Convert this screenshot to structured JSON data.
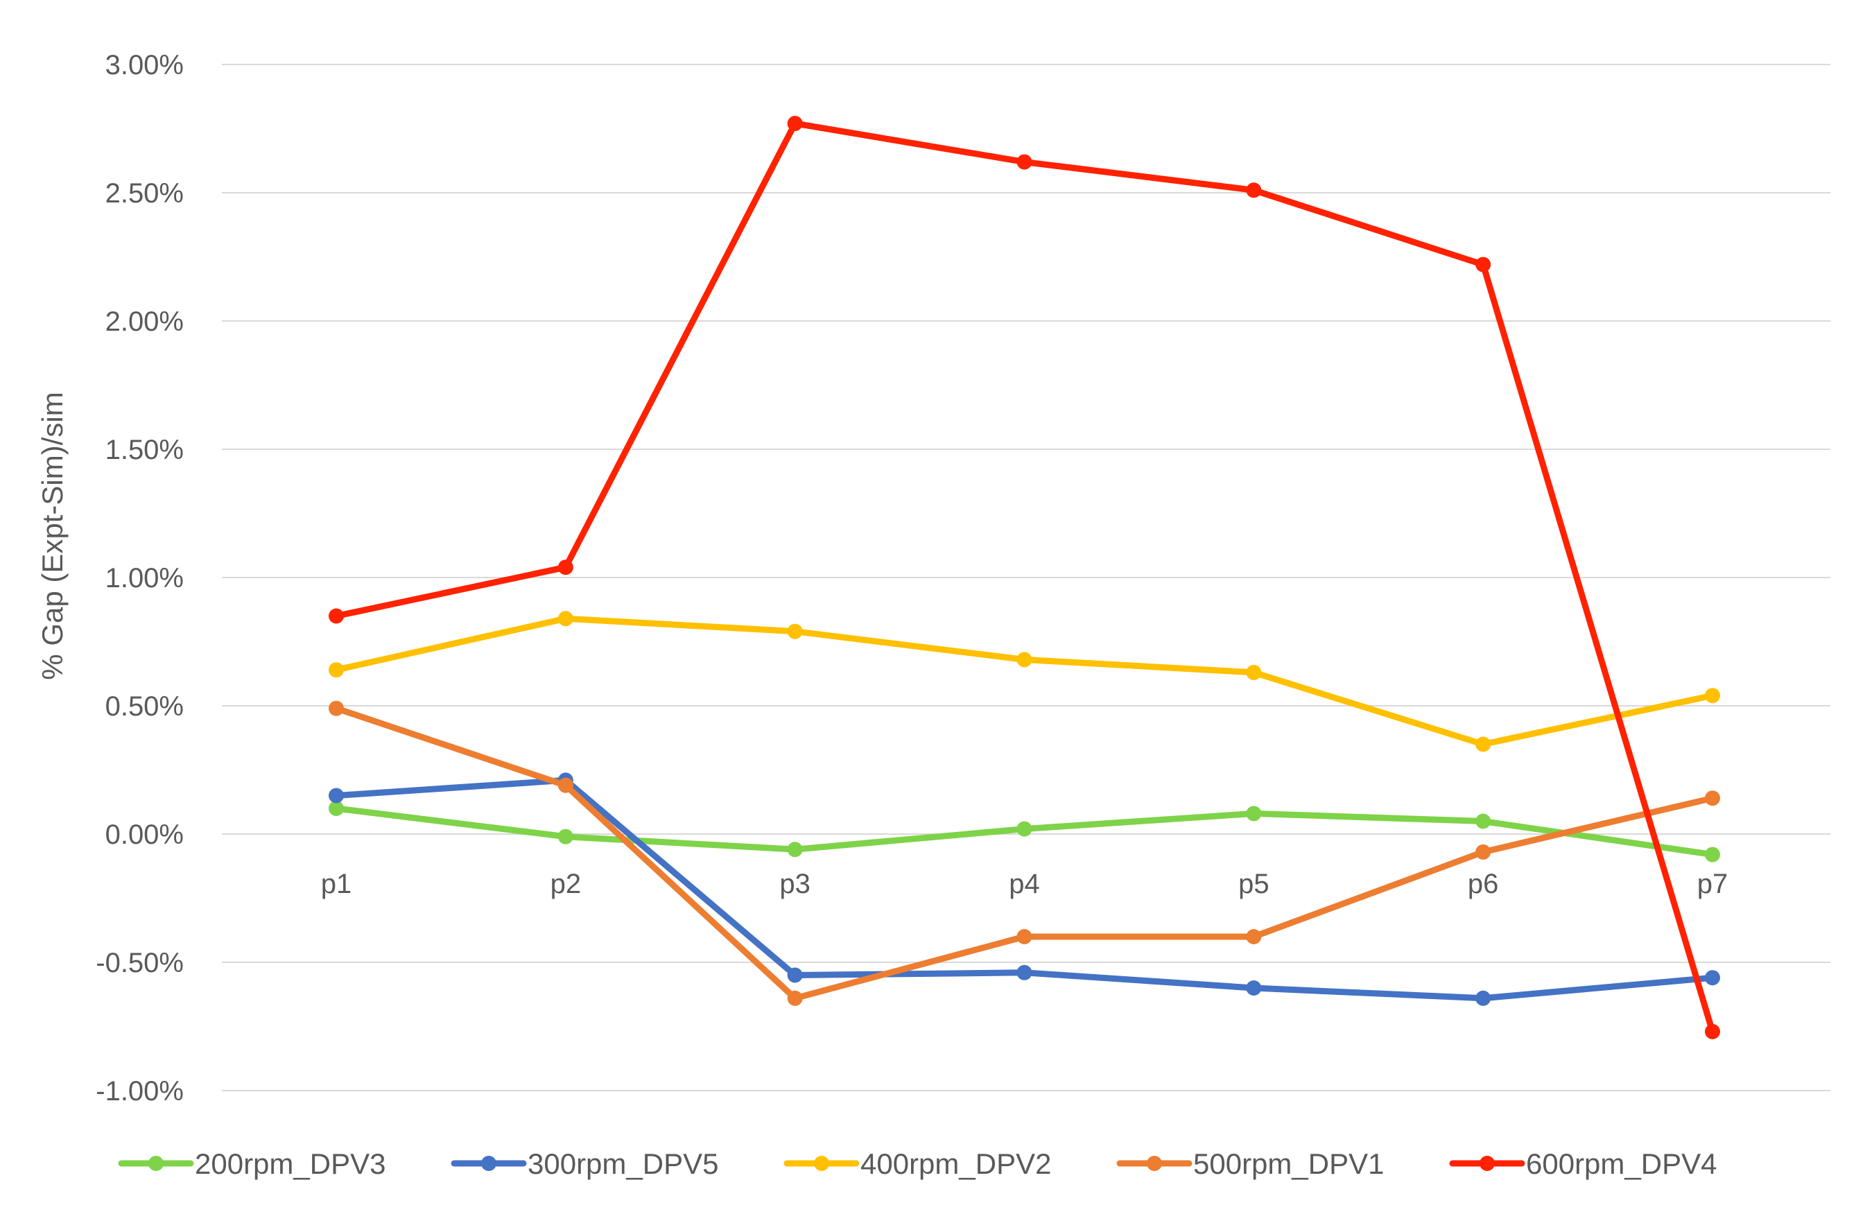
{
  "chart_data": {
    "type": "line",
    "title": "",
    "xlabel": "",
    "ylabel": "% Gap (Expt-Sim)/sim",
    "categories": [
      "p1",
      "p2",
      "p3",
      "p4",
      "p5",
      "p6",
      "p7"
    ],
    "ylim": [
      -0.01,
      0.03
    ],
    "y_ticks": [
      0.03,
      0.025,
      0.02,
      0.015,
      0.01,
      0.005,
      0.0,
      -0.005,
      -0.01
    ],
    "y_tick_labels": [
      "3.00%",
      "2.50%",
      "2.00%",
      "1.50%",
      "1.00%",
      "0.50%",
      "0.00%",
      "-0.50%",
      "-1.00%"
    ],
    "grid": true,
    "legend_position": "bottom",
    "series": [
      {
        "name": "200rpm_DPV3",
        "color": "#7ed348",
        "values": [
          0.001,
          -0.0001,
          -0.0006,
          0.0002,
          0.0008,
          0.0005,
          -0.0008
        ]
      },
      {
        "name": "300rpm_DPV5",
        "color": "#4472c4",
        "values": [
          0.0015,
          0.0021,
          -0.0055,
          -0.0054,
          -0.006,
          -0.0064,
          -0.0056
        ]
      },
      {
        "name": "400rpm_DPV2",
        "color": "#ffc000",
        "values": [
          0.0064,
          0.0084,
          0.0079,
          0.0068,
          0.0063,
          0.0035,
          0.0054
        ]
      },
      {
        "name": "500rpm_DPV1",
        "color": "#ed7d31",
        "values": [
          0.0049,
          0.0019,
          -0.0064,
          -0.004,
          -0.004,
          -0.0007,
          0.0014
        ]
      },
      {
        "name": "600rpm_DPV4",
        "color": "#ff2200",
        "values": [
          0.0085,
          0.0104,
          0.0277,
          0.0262,
          0.0251,
          0.0222,
          -0.0077
        ]
      }
    ]
  }
}
